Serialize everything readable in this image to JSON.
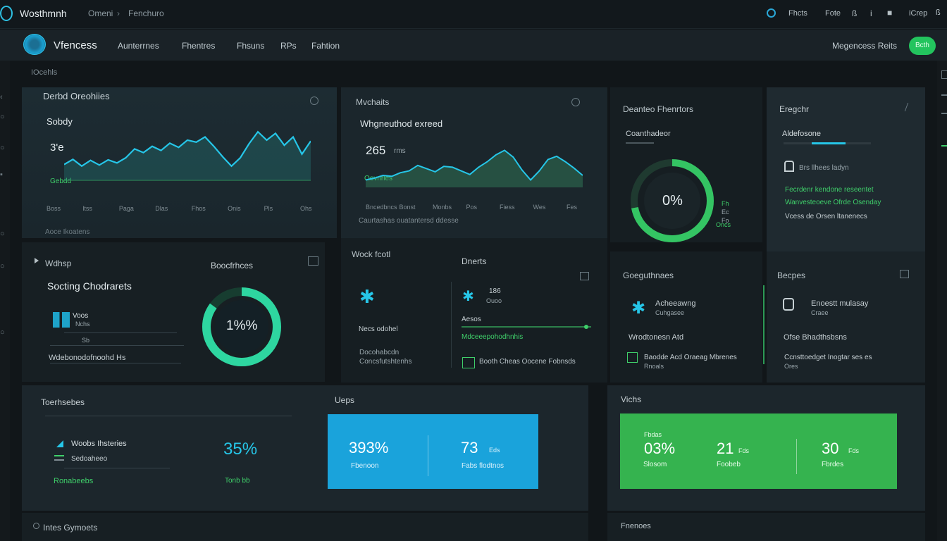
{
  "titlebar": {
    "app_name": "Wosthmnh",
    "breadcrumb_a": "Omeni",
    "breadcrumb_sep": "›",
    "breadcrumb_b": "Fenchuro",
    "right_items": [
      "Fhcts",
      "Fote",
      "ß",
      "i",
      "■",
      "iCrep",
      "ß"
    ]
  },
  "navbar": {
    "brand": "Vfencess",
    "menu": [
      "Aunterrnes",
      "Fhentres",
      "Fhsuns",
      "RPs",
      "Fahtion"
    ],
    "right_link": "Megencess Reits",
    "cta": "Bcth"
  },
  "page": {
    "section_label": "IOcehls"
  },
  "card_overview": {
    "title": "Derbd Oreohiies",
    "subtitle": "Sobdy",
    "value": "3'e",
    "legend": "Gebdd",
    "x_labels": [
      "Boss",
      "ltss",
      "Paga",
      "Dlas",
      "Fhos",
      "Onis",
      "Pls",
      "Ohs"
    ],
    "footer": "Aoce Ikoatens",
    "series": [
      0.25,
      0.35,
      0.22,
      0.33,
      0.24,
      0.34,
      0.28,
      0.38,
      0.55,
      0.48,
      0.6,
      0.52,
      0.66,
      0.58,
      0.72,
      0.68,
      0.78,
      0.6,
      0.4,
      0.22,
      0.38,
      0.65,
      0.88,
      0.72,
      0.85,
      0.62,
      0.78,
      0.45,
      0.7
    ]
  },
  "card_weighted": {
    "title": "Mvchaits",
    "subtitle": "Whgneuthod exreed",
    "value": "265",
    "value_unit": "rms",
    "legend": "Oevnrles",
    "x_labels": [
      "Bncedbncs",
      "Bonst",
      "Monbs",
      "Pos",
      "Fiess",
      "Wes",
      "Fes"
    ],
    "footer": "Caurtashas ouatantersd ddesse",
    "series": [
      0.1,
      0.14,
      0.2,
      0.18,
      0.26,
      0.3,
      0.42,
      0.35,
      0.28,
      0.4,
      0.38,
      0.3,
      0.22,
      0.38,
      0.5,
      0.65,
      0.75,
      0.6,
      0.32,
      0.1,
      0.3,
      0.55,
      0.62,
      0.5,
      0.36,
      0.2
    ]
  },
  "card_donut_top": {
    "title": "Deanteo Fhenrtors",
    "subtitle": "Coanthadeor",
    "value": "0%",
    "side_labels": [
      "Fh",
      "Ec",
      "Fo",
      "Oncs"
    ],
    "progress": 0.72
  },
  "card_engage": {
    "title": "Eregchr",
    "subtitle": "Aldefosone",
    "item": "Brs llhees ladyn",
    "lines": [
      "Fecrdenr kendone reseentet",
      "Wanvesteoeve Ofrde Osenday",
      "Vcess de Orsen ltanenecs"
    ]
  },
  "card_scoring": {
    "title": "Wdhsp",
    "right_title": "Boocfrhces",
    "subtitle": "Socting Chodrarets",
    "item_label": "Voos",
    "item_sub": "Nchs",
    "item_meta": "Sb",
    "footer": "Wdebonodofnoohd Hs",
    "donut_value": "1%%",
    "progress": 0.85
  },
  "card_web": {
    "title": "Wock fcotl",
    "item": "Necs odohel",
    "footer_lines": [
      "Docohabcdn",
      "Concsfutshtenhs"
    ],
    "right_title": "Dnerts",
    "right_count": "186",
    "right_count_sub": "Ouoo",
    "right_line1": "Aesos",
    "right_line2": "Mdceeepohodhnhis",
    "right_footer": "Booth Cheas Oocene Fobnsds"
  },
  "card_gauge": {
    "title": "Goeguthnaes",
    "item": "Acheeawng",
    "item_sub": "Cuhgasee",
    "line1": "Wrodtonesn Atd",
    "line2": "Baodde Acd Oraeag Mbrenes",
    "line3": "Rnoals"
  },
  "card_recipes": {
    "title": "Becpes",
    "item": "Enoestt mulasay",
    "item_sub": "Craee",
    "line1": "Ofse Bhadthsbsns",
    "line2": "Ccnsttoedget Inogtar ses es",
    "line3": "Ores"
  },
  "card_trends": {
    "title": "Toerhsebes",
    "item1": "Woobs Ihsteries",
    "item2": "Sedoaheeo",
    "footer": "Ronabeebs",
    "value": "35%",
    "value_foot": "Tonb bb"
  },
  "card_blue": {
    "label": "Ueps",
    "stat1": "393%",
    "stat1_sub": "Fbenoon",
    "stat2": "73",
    "stat2_unit": "Eds",
    "stat2_sub": "Fabs flodtnos",
    "bg": "#1aa3db"
  },
  "card_green": {
    "label": "Vichs",
    "stat1": "03%",
    "stat1_sub": "Slosom",
    "stat1_top": "Fbdas",
    "stat2": "21",
    "stat2_unit": "Fds",
    "stat2_sub": "Foobeb",
    "stat3": "30",
    "stat3_unit": "Fds",
    "stat3_sub": "Fbrdes",
    "bg": "#35b34f"
  },
  "bottom": {
    "left": "Intes Gymoets",
    "right": "Fnenoes"
  },
  "colors": {
    "accent": "#26c6e8",
    "green": "#3fcf6a"
  }
}
